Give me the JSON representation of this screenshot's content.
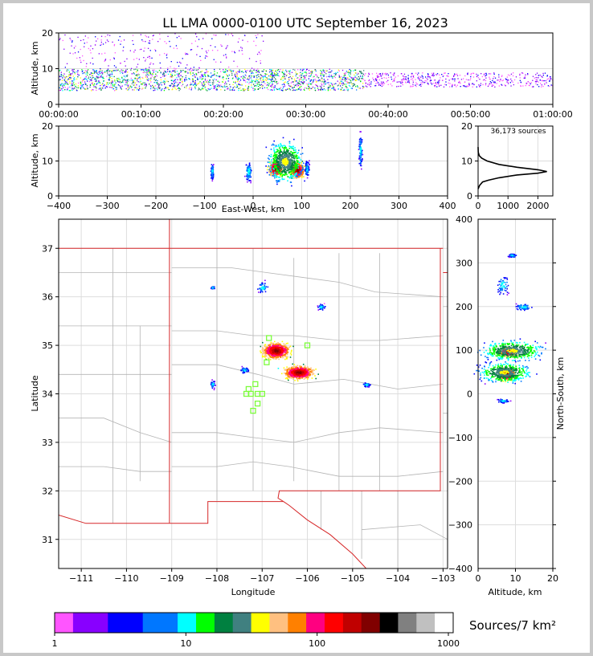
{
  "title": "LL LMA 0000-0100 UTC September 16, 2023",
  "colors": {
    "state_border": "#d62728",
    "county_border": "#b4b4b4",
    "grid": "#dddddd",
    "station": "#7cfc3c"
  },
  "colorbar": {
    "label": "Sources/7 km²",
    "colors": [
      "#ff55ff",
      "#8800ff",
      "#0000ff",
      "#0077ff",
      "#00ffff",
      "#00ff00",
      "#008040",
      "#408080",
      "#ffff00",
      "#ffc080",
      "#ff8000",
      "#ff0080",
      "#ff0000",
      "#c00000",
      "#800000",
      "#000000",
      "#808080",
      "#c0c0c0",
      "#ffffff"
    ],
    "ticks": [
      {
        "value": 1,
        "label": "1"
      },
      {
        "value": 10,
        "label": "10"
      },
      {
        "value": 100,
        "label": "100"
      },
      {
        "value": 1000,
        "label": "1000"
      }
    ]
  },
  "chart_data": [
    {
      "type": "scatter",
      "panel": "time-altitude",
      "ylabel": "Altitude, km",
      "xlim_min": [
        0,
        60
      ],
      "ylim": [
        0,
        20
      ],
      "x_ticks": [
        {
          "value": 0,
          "label": "00:00:00"
        },
        {
          "value": 10,
          "label": "00:10:00"
        },
        {
          "value": 20,
          "label": "00:20:00"
        },
        {
          "value": 30,
          "label": "00:30:00"
        },
        {
          "value": 40,
          "label": "00:40:00"
        },
        {
          "value": 50,
          "label": "00:50:00"
        },
        {
          "value": 60,
          "label": "01:00:00"
        }
      ],
      "y_ticks": [
        {
          "value": 0,
          "label": "0"
        },
        {
          "value": 10,
          "label": "10"
        },
        {
          "value": 20,
          "label": "20"
        }
      ],
      "clusters": [
        {
          "x": [
            0,
            37
          ],
          "y": [
            4,
            10
          ],
          "density": "high"
        },
        {
          "x": [
            37,
            60
          ],
          "y": [
            5,
            9
          ],
          "density": "low"
        },
        {
          "x": [
            0,
            25
          ],
          "y": [
            10,
            20
          ],
          "density": "sparse"
        }
      ]
    },
    {
      "type": "heatmap",
      "panel": "east-west-altitude",
      "xlabel": "East-West, km",
      "ylabel": "Altitude, km",
      "xlim": [
        -400,
        400
      ],
      "ylim": [
        0,
        20
      ],
      "x_ticks": [
        {
          "value": -400,
          "label": "−400"
        },
        {
          "value": -300,
          "label": "−300"
        },
        {
          "value": -200,
          "label": "−200"
        },
        {
          "value": -100,
          "label": "−100"
        },
        {
          "value": 0,
          "label": "0"
        },
        {
          "value": 100,
          "label": "100"
        },
        {
          "value": 200,
          "label": "200"
        },
        {
          "value": 300,
          "label": "300"
        },
        {
          "value": 400,
          "label": "400"
        }
      ],
      "y_ticks": [
        {
          "value": 0,
          "label": "0"
        },
        {
          "value": 10,
          "label": "10"
        },
        {
          "value": 20,
          "label": "20"
        }
      ],
      "clusters": [
        {
          "x": 45,
          "y": 8,
          "w": 25,
          "h": 4,
          "level": "peak"
        },
        {
          "x": 90,
          "y": 7.5,
          "w": 25,
          "h": 4,
          "level": "peak"
        },
        {
          "x": 65,
          "y": 10,
          "w": 60,
          "h": 10,
          "level": "mid"
        },
        {
          "x": -10,
          "y": 7,
          "w": 12,
          "h": 5,
          "level": "low"
        },
        {
          "x": 220,
          "y": 13,
          "w": 6,
          "h": 9,
          "level": "low"
        },
        {
          "x": -85,
          "y": 7,
          "w": 6,
          "h": 4,
          "level": "low"
        },
        {
          "x": 110,
          "y": 8,
          "w": 8,
          "h": 4,
          "level": "low"
        }
      ]
    },
    {
      "type": "line",
      "panel": "altitude-histogram",
      "annotation": "36,173 sources",
      "xlim": [
        0,
        2500
      ],
      "ylim": [
        0,
        20
      ],
      "x_ticks": [
        {
          "value": 0,
          "label": "0"
        },
        {
          "value": 1000,
          "label": "1000"
        },
        {
          "value": 2000,
          "label": "2000"
        }
      ],
      "y_ticks": [
        {
          "value": 0,
          "label": "0"
        },
        {
          "value": 10,
          "label": "10"
        },
        {
          "value": 20,
          "label": "20"
        }
      ],
      "x": [
        0,
        50,
        150,
        350,
        700,
        1300,
        2000,
        2300,
        2000,
        1300,
        700,
        300,
        120,
        40,
        5,
        0
      ],
      "y": [
        2,
        3,
        4,
        4.5,
        5.2,
        6,
        6.5,
        7,
        7.5,
        8.2,
        9,
        10,
        10.8,
        11.5,
        12.5,
        14
      ]
    },
    {
      "type": "heatmap",
      "panel": "plan-view",
      "xlabel": "Longitude",
      "ylabel": "Latitude",
      "xlim": [
        -111.5,
        -102.9
      ],
      "ylim": [
        30.4,
        37.6
      ],
      "x_ticks": [
        {
          "value": -111,
          "label": "−111"
        },
        {
          "value": -110,
          "label": "−110"
        },
        {
          "value": -109,
          "label": "−109"
        },
        {
          "value": -108,
          "label": "−108"
        },
        {
          "value": -107,
          "label": "−107"
        },
        {
          "value": -106,
          "label": "−106"
        },
        {
          "value": -105,
          "label": "−105"
        },
        {
          "value": -104,
          "label": "−104"
        },
        {
          "value": -103,
          "label": "−103"
        }
      ],
      "y_ticks": [
        {
          "value": 31,
          "label": "31"
        },
        {
          "value": 32,
          "label": "32"
        },
        {
          "value": 33,
          "label": "33"
        },
        {
          "value": 34,
          "label": "34"
        },
        {
          "value": 35,
          "label": "35"
        },
        {
          "value": 36,
          "label": "36"
        },
        {
          "value": 37,
          "label": "37"
        }
      ],
      "clusters": [
        {
          "x": -106.7,
          "y": 34.9,
          "w": 0.55,
          "h": 0.3,
          "level": "peak"
        },
        {
          "x": -106.2,
          "y": 34.45,
          "w": 0.6,
          "h": 0.25,
          "level": "peak"
        },
        {
          "x": -107.4,
          "y": 34.5,
          "w": 0.15,
          "h": 0.12,
          "level": "low"
        },
        {
          "x": -105.7,
          "y": 35.8,
          "w": 0.15,
          "h": 0.1,
          "level": "low"
        },
        {
          "x": -107.0,
          "y": 36.2,
          "w": 0.2,
          "h": 0.2,
          "level": "low"
        },
        {
          "x": -104.7,
          "y": 34.2,
          "w": 0.15,
          "h": 0.08,
          "level": "low"
        },
        {
          "x": -108.1,
          "y": 34.2,
          "w": 0.08,
          "h": 0.15,
          "level": "low"
        },
        {
          "x": -108.1,
          "y": 36.2,
          "w": 0.08,
          "h": 0.05,
          "level": "low"
        }
      ],
      "stations": [
        {
          "lon": -106.85,
          "lat": 35.15
        },
        {
          "lon": -106.0,
          "lat": 35.0
        },
        {
          "lon": -106.9,
          "lat": 34.65
        },
        {
          "lon": -107.15,
          "lat": 34.2
        },
        {
          "lon": -107.3,
          "lat": 34.1
        },
        {
          "lon": -107.25,
          "lat": 34.0
        },
        {
          "lon": -107.35,
          "lat": 34.0
        },
        {
          "lon": -107.1,
          "lat": 34.0
        },
        {
          "lon": -107.0,
          "lat": 34.0
        },
        {
          "lon": -107.1,
          "lat": 33.8
        },
        {
          "lon": -107.2,
          "lat": 33.65
        }
      ]
    },
    {
      "type": "heatmap",
      "panel": "altitude-north-south",
      "xlabel": "Altitude, km",
      "ylabel": "North-South, km",
      "xlim": [
        0,
        20
      ],
      "ylim": [
        -400,
        400
      ],
      "x_ticks": [
        {
          "value": 0,
          "label": "0"
        },
        {
          "value": 10,
          "label": "10"
        },
        {
          "value": 20,
          "label": "20"
        }
      ],
      "y_ticks": [
        {
          "value": -400,
          "label": "−400"
        },
        {
          "value": -300,
          "label": "−300"
        },
        {
          "value": -200,
          "label": "−200"
        },
        {
          "value": -100,
          "label": "−100"
        },
        {
          "value": 0,
          "label": "0"
        },
        {
          "value": 100,
          "label": "100"
        },
        {
          "value": 200,
          "label": "200"
        },
        {
          "value": 300,
          "label": "300"
        },
        {
          "value": 400,
          "label": "400"
        }
      ],
      "clusters": [
        {
          "x": 8,
          "y": 97,
          "w": 4,
          "h": 18,
          "level": "peak"
        },
        {
          "x": 7.5,
          "y": 47,
          "w": 4,
          "h": 25,
          "level": "peak"
        },
        {
          "x": 9,
          "y": 100,
          "w": 14,
          "h": 40,
          "level": "mid"
        },
        {
          "x": 7,
          "y": 50,
          "w": 12,
          "h": 40,
          "level": "mid"
        },
        {
          "x": 6.5,
          "y": 250,
          "w": 3,
          "h": 40,
          "level": "low"
        },
        {
          "x": 12,
          "y": 200,
          "w": 4,
          "h": 15,
          "level": "low"
        },
        {
          "x": 6.5,
          "y": -15,
          "w": 3,
          "h": 8,
          "level": "low"
        },
        {
          "x": 9,
          "y": 318,
          "w": 2,
          "h": 8,
          "level": "low"
        }
      ]
    }
  ]
}
